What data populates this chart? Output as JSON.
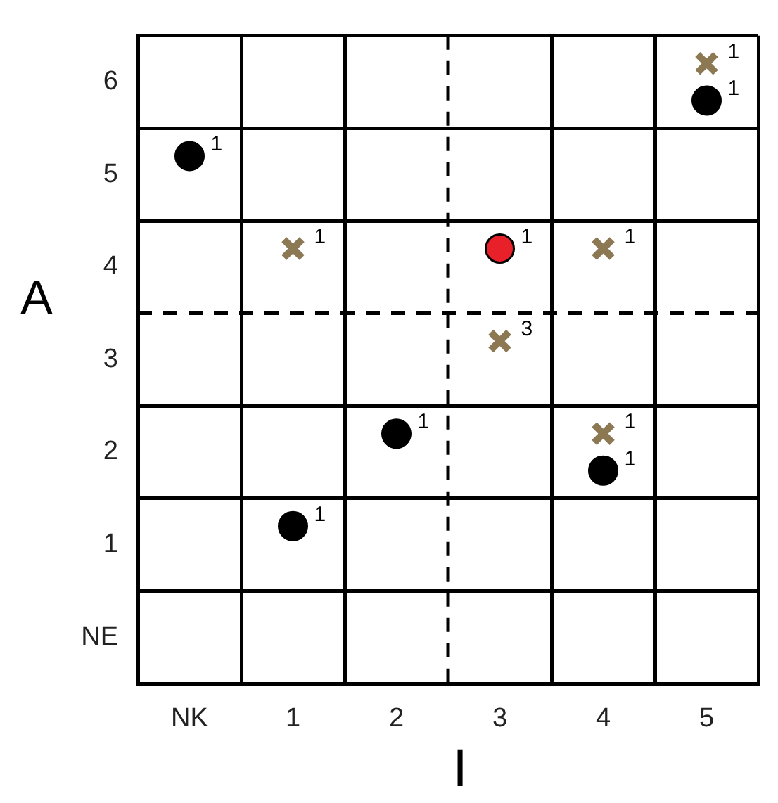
{
  "chart_data": {
    "type": "scatter",
    "xlabel": "I",
    "ylabel": "A",
    "xlim": [
      -0.5,
      5.5
    ],
    "ylim": [
      -0.5,
      6.5
    ],
    "xticks": [
      {
        "value": -0.5,
        "label": null
      },
      {
        "value": 0,
        "label": "NK"
      },
      {
        "value": 0.5,
        "label": null
      },
      1,
      {
        "value": 1.5,
        "label": null
      },
      2,
      3,
      {
        "value": 3.5,
        "label": null
      },
      4,
      {
        "value": 4.5,
        "label": null
      },
      5,
      {
        "value": 5.5,
        "label": null
      }
    ],
    "yticks": [
      {
        "value": -0.5,
        "label": null
      },
      {
        "value": 0,
        "label": "NE"
      },
      {
        "value": 0.5,
        "label": null
      },
      1,
      {
        "value": 1.5,
        "label": null
      },
      2,
      {
        "value": 2.5,
        "label": null
      },
      3,
      4,
      {
        "value": 4.5,
        "label": null
      },
      5,
      {
        "value": 5.5,
        "label": null
      },
      6,
      {
        "value": 6.5,
        "label": null
      }
    ],
    "grid": true,
    "ref_lines": [
      {
        "axis": "x",
        "value": 2.5,
        "line_style": "dashed"
      },
      {
        "axis": "y",
        "value": 3.5,
        "line_style": "dashed"
      }
    ],
    "series": [
      {
        "color": "#000000",
        "marker": "circle",
        "x": [
          0,
          1,
          2,
          4,
          5
        ],
        "values": [
          5.2,
          1.2,
          2.2,
          1.8,
          5.8
        ]
      },
      {
        "color": "#e8202a",
        "marker": "circle",
        "x": [
          3
        ],
        "values": [
          4.2
        ]
      },
      {
        "color": "#8c7853",
        "marker": "cross",
        "x": [
          1,
          3,
          4,
          4,
          5
        ],
        "values": [
          4.2,
          3.2,
          4.2,
          2.2,
          6.2
        ]
      }
    ],
    "annotations": [
      {
        "text": "1",
        "x": 0,
        "y": 5.2
      },
      {
        "text": "1",
        "x": 1,
        "y": 1.2
      },
      {
        "text": "1",
        "x": 2,
        "y": 2.2
      },
      {
        "text": "1",
        "x": 4,
        "y": 1.8
      },
      {
        "text": "1",
        "x": 5,
        "y": 5.8
      },
      {
        "text": "1",
        "x": 3,
        "y": 4.2
      },
      {
        "text": "1",
        "x": 1,
        "y": 4.2
      },
      {
        "text": "3",
        "x": 3,
        "y": 3.2
      },
      {
        "text": "1",
        "x": 4,
        "y": 4.2
      },
      {
        "text": "1",
        "x": 4,
        "y": 2.2
      },
      {
        "text": "1",
        "x": 5,
        "y": 6.2
      }
    ]
  }
}
